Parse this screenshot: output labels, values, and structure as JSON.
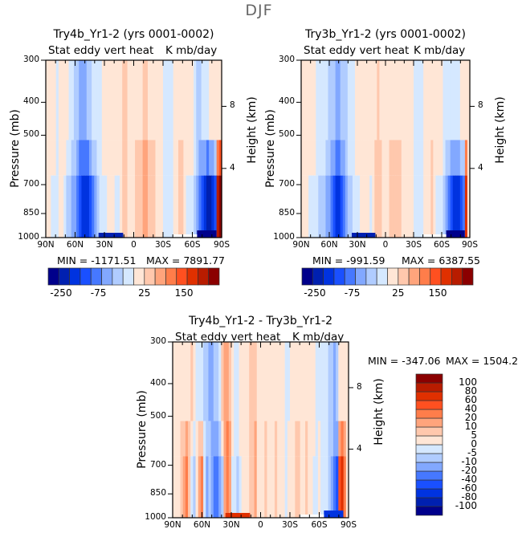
{
  "suptitle": "DJF",
  "palette": [
    "#00008b",
    "#0020b0",
    "#0033e0",
    "#1a50ff",
    "#4678ff",
    "#82a8ff",
    "#b0ccff",
    "#d5e8ff",
    "#ffe6d6",
    "#ffc8ad",
    "#ffa47c",
    "#ff7d4a",
    "#ff5020",
    "#e03000",
    "#b81c00",
    "#8b0000"
  ],
  "chart_data": [
    {
      "type": "heatmap",
      "title": "Try4b_Yr1-2 (yrs 0001-0002)",
      "subtitle_left": "Stat eddy vert heat",
      "subtitle_right": "K mb/day",
      "xlabel": "",
      "ylabel": "Pressure (mb)",
      "ylabel_right": "Height (km)",
      "xticks": [
        "90N",
        "60N",
        "30N",
        "0",
        "30S",
        "60S",
        "90S"
      ],
      "yticks": [
        "300",
        "400",
        "500",
        "700",
        "850",
        "1000"
      ],
      "yticks_right": [
        "8",
        "4"
      ],
      "min_label": "MIN = -1171.51",
      "max_label": "MAX = 7891.77",
      "min": -1171.51,
      "max": 7891.77,
      "colorbar_labels": [
        "-250",
        "-75",
        "25",
        "150"
      ],
      "colorbar_orientation": "horizontal",
      "columns": [
        8,
        8,
        7,
        7,
        7,
        8,
        8,
        7,
        6,
        6,
        5,
        5,
        4,
        3,
        2,
        2,
        2,
        3,
        4,
        5,
        6,
        7,
        7,
        7,
        8,
        8,
        8,
        7,
        7,
        8,
        9,
        9,
        8,
        8,
        8,
        9,
        9,
        9,
        10,
        10,
        9,
        9,
        9,
        8,
        8,
        8,
        7,
        7,
        7,
        7,
        8,
        8,
        9,
        9,
        8,
        7,
        7,
        7,
        6,
        5,
        4,
        3,
        2,
        1,
        1,
        2,
        3,
        14,
        15
      ],
      "columns_upper": [
        8,
        8,
        8,
        8,
        7,
        8,
        8,
        8,
        8,
        7,
        7,
        6,
        6,
        5,
        5,
        5,
        6,
        6,
        7,
        7,
        7,
        7,
        8,
        8,
        8,
        8,
        8,
        8,
        8,
        8,
        9,
        9,
        8,
        8,
        8,
        8,
        8,
        8,
        9,
        9,
        8,
        8,
        8,
        8,
        8,
        8,
        7,
        7,
        7,
        7,
        8,
        8,
        8,
        8,
        8,
        8,
        8,
        8,
        7,
        6,
        6,
        7,
        7,
        7,
        8,
        8,
        8,
        8,
        8
      ]
    },
    {
      "type": "heatmap",
      "title": "Try3b_Yr1-2 (yrs 0001-0002)",
      "subtitle_left": "Stat eddy vert heat",
      "subtitle_right": "K mb/day",
      "xlabel": "",
      "ylabel": "Pressure (mb)",
      "ylabel_right": "Height (km)",
      "xticks": [
        "90N",
        "60N",
        "30N",
        "0",
        "30S",
        "60S",
        "90S"
      ],
      "yticks": [
        "300",
        "400",
        "500",
        "700",
        "850",
        "1000"
      ],
      "yticks_right": [
        "8",
        "4"
      ],
      "min_label": "MIN = -991.59",
      "max_label": "MAX = 6387.55",
      "min": -991.59,
      "max": 6387.55,
      "colorbar_labels": [
        "-250",
        "-75",
        "25",
        "150"
      ],
      "colorbar_orientation": "horizontal",
      "columns": [
        8,
        8,
        8,
        7,
        7,
        7,
        7,
        6,
        6,
        6,
        5,
        5,
        4,
        3,
        2,
        2,
        3,
        4,
        5,
        6,
        6,
        7,
        7,
        7,
        8,
        8,
        8,
        8,
        7,
        8,
        9,
        9,
        9,
        8,
        8,
        8,
        9,
        9,
        9,
        9,
        9,
        8,
        8,
        8,
        8,
        8,
        7,
        7,
        7,
        7,
        8,
        8,
        8,
        9,
        8,
        7,
        7,
        7,
        6,
        5,
        4,
        3,
        2,
        2,
        2,
        3,
        4,
        13,
        8
      ],
      "columns_upper": [
        8,
        8,
        8,
        8,
        8,
        8,
        7,
        7,
        7,
        7,
        7,
        6,
        6,
        6,
        5,
        5,
        6,
        6,
        6,
        7,
        7,
        7,
        8,
        8,
        8,
        8,
        8,
        8,
        8,
        8,
        8,
        9,
        8,
        8,
        8,
        8,
        8,
        8,
        8,
        8,
        8,
        8,
        8,
        8,
        8,
        8,
        7,
        7,
        7,
        7,
        8,
        8,
        8,
        8,
        8,
        8,
        8,
        8,
        7,
        7,
        7,
        7,
        7,
        7,
        7,
        8,
        8,
        8,
        8
      ]
    },
    {
      "type": "heatmap",
      "title": "Try4b_Yr1-2 - Try3b_Yr1-2",
      "subtitle_left": "Stat eddy vert heat",
      "subtitle_right": "K mb/day",
      "xlabel": "",
      "ylabel": "Pressure (mb)",
      "ylabel_right": "Height (km)",
      "xticks": [
        "90N",
        "60N",
        "30N",
        "0",
        "30S",
        "60S",
        "90S"
      ],
      "yticks": [
        "300",
        "400",
        "500",
        "700",
        "850",
        "1000"
      ],
      "yticks_right": [
        "8",
        "4"
      ],
      "min_label": "MIN = -347.06",
      "max_label": "MAX = 1504.21",
      "min": -347.06,
      "max": 1504.21,
      "colorbar_labels": [
        "100",
        "80",
        "60",
        "40",
        "20",
        "10",
        "5",
        "0",
        "-5",
        "-10",
        "-20",
        "-40",
        "-60",
        "-80",
        "-100"
      ],
      "colorbar_orientation": "vertical",
      "columns": [
        8,
        8,
        8,
        9,
        10,
        11,
        9,
        7,
        6,
        8,
        10,
        11,
        7,
        5,
        6,
        5,
        4,
        4,
        5,
        6,
        10,
        11,
        10,
        7,
        7,
        6,
        7,
        8,
        8,
        8,
        9,
        9,
        10,
        8,
        8,
        8,
        9,
        8,
        8,
        8,
        9,
        8,
        8,
        8,
        7,
        8,
        8,
        8,
        9,
        9,
        8,
        8,
        9,
        8,
        8,
        7,
        7,
        8,
        7,
        7,
        7,
        6,
        5,
        4,
        3,
        12,
        13,
        11,
        8
      ],
      "columns_upper": [
        8,
        8,
        8,
        8,
        8,
        8,
        8,
        9,
        8,
        7,
        7,
        7,
        6,
        6,
        5,
        5,
        6,
        6,
        7,
        9,
        10,
        10,
        9,
        8,
        7,
        7,
        8,
        8,
        8,
        8,
        9,
        9,
        9,
        8,
        8,
        8,
        8,
        8,
        8,
        8,
        8,
        8,
        8,
        8,
        7,
        7,
        8,
        8,
        8,
        8,
        8,
        8,
        8,
        8,
        8,
        8,
        7,
        7,
        7,
        7,
        7,
        6,
        6,
        5,
        6,
        8,
        8,
        8,
        8
      ]
    }
  ]
}
